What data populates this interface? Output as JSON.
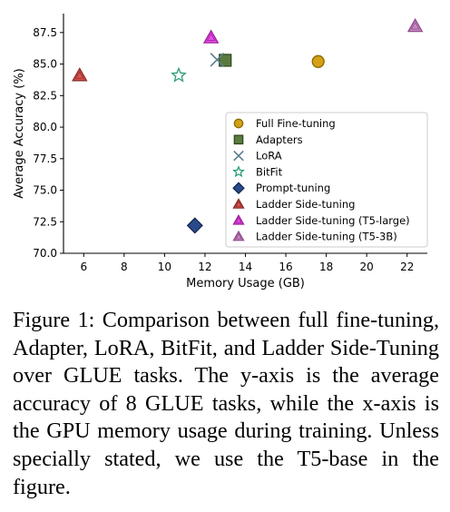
{
  "chart_data": {
    "type": "scatter",
    "xlabel": "Memory Usage (GB)",
    "ylabel": "Average Accuracy (%)",
    "xlim": [
      5,
      23
    ],
    "ylim": [
      70.0,
      89.0
    ],
    "x_ticks": [
      6,
      8,
      10,
      12,
      14,
      16,
      18,
      20,
      22
    ],
    "x_tick_labels": [
      "6",
      "8",
      "10",
      "12",
      "14",
      "16",
      "18",
      "20",
      "22"
    ],
    "y_ticks": [
      70.0,
      72.5,
      75.0,
      77.5,
      80.0,
      82.5,
      85.0,
      87.5
    ],
    "y_tick_labels": [
      "70.0",
      "72.5",
      "75.0",
      "77.5",
      "80.0",
      "82.5",
      "85.0",
      "87.5"
    ],
    "grid": false,
    "legend_position": "lower-right",
    "series": [
      {
        "name": "Full Fine-tuning",
        "marker": "circle",
        "color": "#d4a017",
        "edge": "#8a6a00",
        "x": 17.6,
        "y": 85.2
      },
      {
        "name": "Adapters",
        "marker": "square",
        "color": "#5b7a3f",
        "edge": "#2f4a1e",
        "x": 13.0,
        "y": 85.3
      },
      {
        "name": "LoRA",
        "marker": "x",
        "color": "#5c7e91",
        "edge": "#5c7e91",
        "x": 12.6,
        "y": 85.35
      },
      {
        "name": "BitFit",
        "marker": "star",
        "color": "#ffffff",
        "edge": "#2a9d78",
        "x": 10.7,
        "y": 84.1
      },
      {
        "name": "Prompt-tuning",
        "marker": "diamond",
        "color": "#2b4a8b",
        "edge": "#13264f",
        "x": 11.5,
        "y": 72.2
      },
      {
        "name": "Ladder Side-tuning",
        "marker": "triangle",
        "color": "#d9534f",
        "edge": "#8b2e2a",
        "x": 5.8,
        "y": 84.1
      },
      {
        "name": "Ladder Side-tuning (T5-large)",
        "marker": "triangle",
        "color": "#e84de6",
        "edge": "#a020a0",
        "x": 12.3,
        "y": 87.1
      },
      {
        "name": "Ladder Side-tuning (T5-3B)",
        "marker": "triangle",
        "color": "#cc88c6",
        "edge": "#8f4f8a",
        "x": 22.4,
        "y": 88.0
      }
    ]
  },
  "caption": "Figure 1: Comparison between full fine-tuning, Adapter, LoRA, BitFit, and Ladder Side-Tuning over GLUE tasks. The y-axis is the average accuracy of 8 GLUE tasks, while the x-axis is the GPU memory usage during training. Unless specially stated, we use the T5-base in the figure."
}
